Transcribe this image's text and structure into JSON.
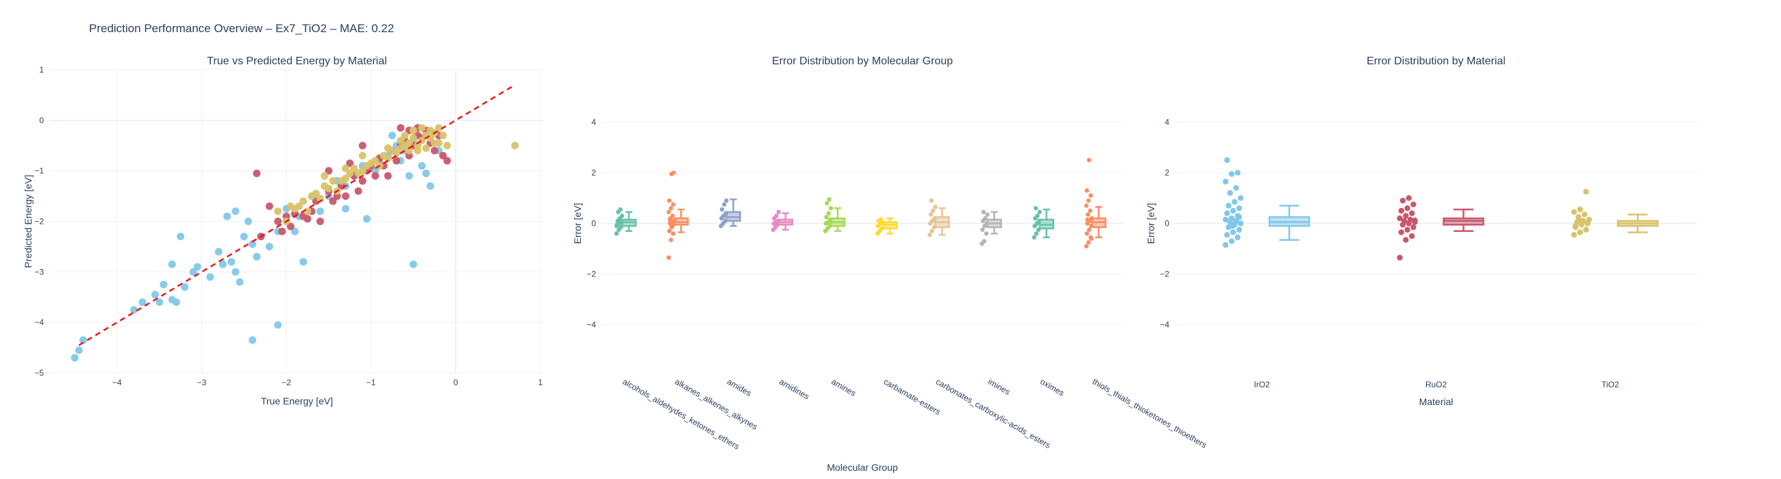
{
  "title": "Prediction Performance Overview – Ex7_TiO2 – MAE: 0.22",
  "colors": {
    "IrO2": "#82c7ea",
    "RuO2": "#c9566b",
    "TiO2": "#d9c26a",
    "identity_line": "#e41a1c",
    "groups": [
      "#66c2a5",
      "#fc8d62",
      "#8da0cb",
      "#e78ac3",
      "#a6d854",
      "#ffd92f",
      "#e5c494",
      "#b3b3b3",
      "#66c2a5",
      "#fc8d62"
    ]
  },
  "chart_data": [
    {
      "type": "scatter",
      "title": "True vs Predicted Energy by Material",
      "xlabel": "True Energy [eV]",
      "ylabel": "Predicted Energy [eV]",
      "xlim": [
        -4.8,
        1.05
      ],
      "ylim": [
        -5.0,
        1.0
      ],
      "xticks": [
        -4,
        -3,
        -2,
        -1,
        0,
        1
      ],
      "yticks": [
        -5,
        -4,
        -3,
        -2,
        -1,
        0,
        1
      ],
      "grid": true,
      "identity_line": {
        "x": [
          -4.45,
          0.7
        ],
        "y": [
          -4.45,
          0.7
        ],
        "style": "dash"
      },
      "series": [
        {
          "name": "IrO2",
          "points": [
            [
              -4.5,
              -4.7
            ],
            [
              -4.45,
              -4.55
            ],
            [
              -4.4,
              -4.35
            ],
            [
              -3.8,
              -3.75
            ],
            [
              -3.7,
              -3.6
            ],
            [
              -3.55,
              -3.45
            ],
            [
              -3.5,
              -3.6
            ],
            [
              -3.45,
              -3.25
            ],
            [
              -3.35,
              -3.55
            ],
            [
              -3.3,
              -3.6
            ],
            [
              -3.2,
              -3.3
            ],
            [
              -3.1,
              -3.0
            ],
            [
              -3.05,
              -2.9
            ],
            [
              -3.35,
              -2.85
            ],
            [
              -3.25,
              -2.3
            ],
            [
              -2.7,
              -1.9
            ],
            [
              -2.65,
              -2.8
            ],
            [
              -2.6,
              -3.0
            ],
            [
              -2.55,
              -3.2
            ],
            [
              -2.5,
              -2.3
            ],
            [
              -2.45,
              -2.0
            ],
            [
              -2.4,
              -2.45
            ],
            [
              -2.35,
              -2.7
            ],
            [
              -2.3,
              -2.3
            ],
            [
              -2.2,
              -2.5
            ],
            [
              -2.1,
              -4.05
            ],
            [
              -2.4,
              -4.35
            ],
            [
              -2.6,
              -1.8
            ],
            [
              -2.1,
              -2.2
            ],
            [
              -1.9,
              -2.2
            ],
            [
              -1.8,
              -2.8
            ],
            [
              -1.7,
              -1.5
            ],
            [
              -1.6,
              -1.8
            ],
            [
              -1.5,
              -1.5
            ],
            [
              -1.4,
              -1.2
            ],
            [
              -1.3,
              -1.3
            ],
            [
              -1.2,
              -1.1
            ],
            [
              -1.1,
              -0.9
            ],
            [
              -1.05,
              -1.95
            ],
            [
              -1.0,
              -0.9
            ],
            [
              -0.9,
              -0.8
            ],
            [
              -0.8,
              -0.7
            ],
            [
              -0.7,
              -0.5
            ],
            [
              -0.6,
              -0.6
            ],
            [
              -0.5,
              -0.4
            ],
            [
              -0.55,
              -1.1
            ],
            [
              -0.4,
              -0.9
            ],
            [
              -0.35,
              -1.05
            ],
            [
              -0.3,
              -1.3
            ],
            [
              -0.5,
              -2.85
            ],
            [
              -0.2,
              -0.6
            ],
            [
              -2.8,
              -2.6
            ],
            [
              -2.75,
              -2.85
            ],
            [
              -2.9,
              -3.1
            ],
            [
              -2.0,
              -1.75
            ],
            [
              -1.85,
              -1.9
            ],
            [
              -1.3,
              -1.75
            ],
            [
              -0.95,
              -1.0
            ],
            [
              -0.75,
              -0.3
            ],
            [
              -0.65,
              -0.8
            ]
          ]
        },
        {
          "name": "RuO2",
          "points": [
            [
              -2.35,
              -1.05
            ],
            [
              -2.3,
              -2.3
            ],
            [
              -2.1,
              -2.0
            ],
            [
              -2.05,
              -2.2
            ],
            [
              -2.0,
              -1.9
            ],
            [
              -1.95,
              -2.1
            ],
            [
              -1.9,
              -1.85
            ],
            [
              -1.8,
              -1.9
            ],
            [
              -1.75,
              -1.95
            ],
            [
              -1.7,
              -1.8
            ],
            [
              -1.65,
              -1.6
            ],
            [
              -1.6,
              -2.0
            ],
            [
              -1.5,
              -1.4
            ],
            [
              -1.45,
              -1.6
            ],
            [
              -1.4,
              -1.5
            ],
            [
              -1.35,
              -1.3
            ],
            [
              -1.3,
              -1.5
            ],
            [
              -1.2,
              -1.1
            ],
            [
              -1.15,
              -1.4
            ],
            [
              -1.1,
              -1.2
            ],
            [
              -1.05,
              -1.0
            ],
            [
              -1.0,
              -0.9
            ],
            [
              -0.95,
              -1.1
            ],
            [
              -0.9,
              -0.75
            ],
            [
              -0.85,
              -0.9
            ],
            [
              -0.8,
              -1.1
            ],
            [
              -0.75,
              -0.6
            ],
            [
              -0.7,
              -0.8
            ],
            [
              -0.65,
              -0.5
            ],
            [
              -0.6,
              -0.4
            ],
            [
              -0.55,
              -0.7
            ],
            [
              -0.5,
              -0.5
            ],
            [
              -0.45,
              -0.3
            ],
            [
              -0.4,
              -0.35
            ],
            [
              -0.35,
              -0.2
            ],
            [
              -0.3,
              -0.45
            ],
            [
              -0.25,
              -0.6
            ],
            [
              -0.2,
              -0.3
            ],
            [
              -0.15,
              -0.7
            ],
            [
              -0.1,
              -0.8
            ],
            [
              -1.1,
              -0.5
            ],
            [
              -0.65,
              -0.15
            ],
            [
              -0.55,
              -0.2
            ],
            [
              -1.5,
              -1.0
            ],
            [
              -2.2,
              -1.7
            ],
            [
              -1.25,
              -0.85
            ],
            [
              -0.45,
              -0.15
            ]
          ]
        },
        {
          "name": "TiO2",
          "points": [
            [
              -2.1,
              -1.8
            ],
            [
              -2.0,
              -2.0
            ],
            [
              -1.95,
              -1.7
            ],
            [
              -1.9,
              -1.75
            ],
            [
              -1.85,
              -1.7
            ],
            [
              -1.8,
              -1.6
            ],
            [
              -1.75,
              -1.8
            ],
            [
              -1.7,
              -1.5
            ],
            [
              -1.65,
              -1.45
            ],
            [
              -1.6,
              -1.55
            ],
            [
              -1.55,
              -1.3
            ],
            [
              -1.5,
              -1.35
            ],
            [
              -1.45,
              -1.2
            ],
            [
              -1.4,
              -1.4
            ],
            [
              -1.35,
              -1.2
            ],
            [
              -1.3,
              -1.15
            ],
            [
              -1.25,
              -1.05
            ],
            [
              -1.2,
              -0.95
            ],
            [
              -1.15,
              -1.05
            ],
            [
              -1.1,
              -1.0
            ],
            [
              -1.05,
              -0.9
            ],
            [
              -1.0,
              -0.85
            ],
            [
              -0.95,
              -0.8
            ],
            [
              -0.9,
              -0.9
            ],
            [
              -0.85,
              -0.7
            ],
            [
              -0.8,
              -0.75
            ],
            [
              -0.75,
              -0.6
            ],
            [
              -0.7,
              -0.65
            ],
            [
              -0.65,
              -0.55
            ],
            [
              -0.6,
              -0.5
            ],
            [
              -0.55,
              -0.45
            ],
            [
              -0.5,
              -0.35
            ],
            [
              -0.45,
              -0.5
            ],
            [
              -0.4,
              -0.4
            ],
            [
              -0.35,
              -0.3
            ],
            [
              -0.3,
              -0.35
            ],
            [
              -0.25,
              -0.25
            ],
            [
              -0.2,
              -0.45
            ],
            [
              -0.15,
              -0.3
            ],
            [
              -0.1,
              -0.5
            ],
            [
              -0.35,
              -0.55
            ],
            [
              -0.5,
              -0.2
            ],
            [
              -0.6,
              -0.3
            ],
            [
              -0.4,
              -0.15
            ],
            [
              -0.3,
              -0.2
            ],
            [
              -0.25,
              -0.45
            ],
            [
              -0.2,
              -0.15
            ],
            [
              -1.3,
              -0.95
            ],
            [
              -1.1,
              -0.7
            ],
            [
              -1.55,
              -1.1
            ],
            [
              -0.8,
              -0.55
            ],
            [
              0.7,
              -0.5
            ],
            [
              -0.45,
              -0.6
            ],
            [
              -0.55,
              -0.6
            ],
            [
              -0.65,
              -0.4
            ]
          ]
        }
      ]
    },
    {
      "type": "box",
      "title": "Error Distribution by Molecular Group",
      "xlabel": "Molecular Group",
      "ylabel": "Error [eV]",
      "ylim": [
        -4.9,
        4.9
      ],
      "yticks": [
        -4,
        -2,
        0,
        2,
        4
      ],
      "categories": [
        "alcohols_aldehydes_ketones_ethers",
        "alkanes_alkenes_alkynes",
        "amides",
        "amidines",
        "amines",
        "carbamate-esters",
        "carbonates_carboxylic-acids_esters",
        "imines",
        "oximes",
        "thiols_thials_thioketones_thioethers"
      ],
      "boxes": [
        {
          "q1": -0.1,
          "median": 0.05,
          "q3": 0.15,
          "low": -0.3,
          "high": 0.45,
          "points": [
            -0.4,
            -0.25,
            -0.15,
            -0.05,
            0.0,
            0.05,
            0.1,
            0.2,
            0.3,
            0.45,
            0.55,
            -0.1,
            0.12
          ]
        },
        {
          "q1": -0.05,
          "median": 0.05,
          "q3": 0.2,
          "low": -0.35,
          "high": 0.55,
          "points": [
            -1.35,
            -0.65,
            -0.4,
            -0.3,
            -0.15,
            -0.05,
            0.0,
            0.05,
            0.1,
            0.2,
            0.3,
            0.45,
            0.6,
            0.75,
            0.9,
            1.95,
            2.0,
            0.15
          ]
        },
        {
          "q1": 0.1,
          "median": 0.25,
          "q3": 0.45,
          "low": -0.1,
          "high": 0.95,
          "points": [
            -0.1,
            0.0,
            0.1,
            0.2,
            0.3,
            0.4,
            0.55,
            0.75,
            0.9,
            0.25
          ]
        },
        {
          "q1": -0.05,
          "median": 0.05,
          "q3": 0.15,
          "low": -0.25,
          "high": 0.4,
          "points": [
            -0.25,
            -0.15,
            -0.05,
            0.0,
            0.05,
            0.1,
            0.2,
            0.3,
            0.45
          ]
        },
        {
          "q1": -0.1,
          "median": 0.05,
          "q3": 0.2,
          "low": -0.3,
          "high": 0.6,
          "points": [
            -0.3,
            -0.2,
            -0.1,
            0.0,
            0.05,
            0.15,
            0.25,
            0.4,
            0.6,
            0.8,
            0.95
          ]
        },
        {
          "q1": -0.2,
          "median": -0.05,
          "q3": 0.05,
          "low": -0.4,
          "high": 0.2,
          "points": [
            -0.4,
            -0.3,
            -0.2,
            -0.1,
            0.0,
            0.05,
            0.1,
            0.15
          ]
        },
        {
          "q1": -0.15,
          "median": 0.05,
          "q3": 0.25,
          "low": -0.45,
          "high": 0.6,
          "points": [
            -0.45,
            -0.3,
            -0.15,
            0.0,
            0.1,
            0.2,
            0.35,
            0.5,
            0.65,
            0.9
          ]
        },
        {
          "q1": -0.15,
          "median": 0.0,
          "q3": 0.15,
          "low": -0.4,
          "high": 0.45,
          "points": [
            -0.8,
            -0.7,
            -0.4,
            -0.25,
            -0.1,
            0.0,
            0.1,
            0.2,
            0.35,
            0.45
          ]
        },
        {
          "q1": -0.2,
          "median": -0.05,
          "q3": 0.15,
          "low": -0.55,
          "high": 0.55,
          "points": [
            -0.55,
            -0.4,
            -0.25,
            -0.1,
            0.0,
            0.1,
            0.2,
            0.3,
            0.45,
            0.6
          ]
        },
        {
          "q1": -0.15,
          "median": 0.05,
          "q3": 0.2,
          "low": -0.55,
          "high": 0.65,
          "points": [
            -0.9,
            -0.75,
            -0.55,
            -0.4,
            -0.25,
            -0.1,
            0.0,
            0.1,
            0.2,
            0.35,
            0.5,
            0.7,
            0.9,
            1.1,
            1.3,
            2.5,
            -0.6,
            0.15
          ]
        }
      ]
    },
    {
      "type": "box",
      "title": "Error Distribution by Material",
      "xlabel": "Material",
      "ylabel": "Error [eV]",
      "ylim": [
        -4.9,
        4.9
      ],
      "yticks": [
        -4,
        -2,
        0,
        2,
        4
      ],
      "categories": [
        "IrO2",
        "RuO2",
        "TiO2"
      ],
      "boxes": [
        {
          "q1": -0.1,
          "median": 0.05,
          "q3": 0.25,
          "mean": 0.07,
          "low": -0.65,
          "high": 0.7,
          "points": [
            -0.85,
            -0.7,
            -0.55,
            -0.45,
            -0.35,
            -0.25,
            -0.15,
            -0.05,
            0.0,
            0.05,
            0.1,
            0.15,
            0.2,
            0.3,
            0.4,
            0.5,
            0.6,
            0.7,
            0.85,
            1.0,
            1.2,
            1.4,
            1.65,
            1.95,
            2.0,
            2.5,
            -0.1,
            0.25
          ]
        },
        {
          "q1": -0.05,
          "median": 0.1,
          "q3": 0.2,
          "mean": 0.09,
          "low": -0.3,
          "high": 0.55,
          "points": [
            -1.35,
            -0.65,
            -0.5,
            -0.35,
            -0.25,
            -0.15,
            -0.05,
            0.0,
            0.05,
            0.1,
            0.15,
            0.2,
            0.3,
            0.4,
            0.5,
            0.6,
            0.75,
            0.9,
            1.0,
            0.12
          ]
        },
        {
          "q1": -0.1,
          "median": 0.0,
          "q3": 0.1,
          "mean": 0.01,
          "low": -0.35,
          "high": 0.35,
          "points": [
            -0.45,
            -0.35,
            -0.25,
            -0.15,
            -0.05,
            0.0,
            0.05,
            0.1,
            0.15,
            0.25,
            0.35,
            0.45,
            0.55,
            1.25,
            -0.1,
            0.08
          ]
        }
      ]
    }
  ]
}
